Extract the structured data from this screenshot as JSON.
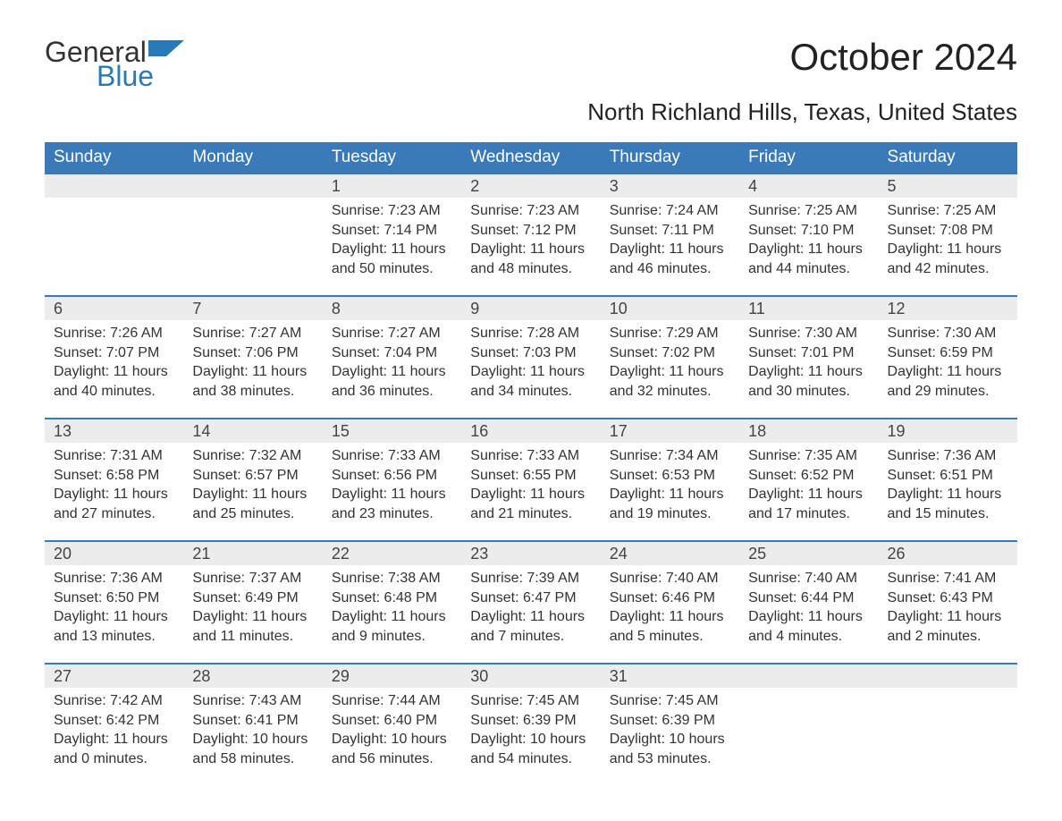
{
  "logo": {
    "word1": "General",
    "word2": "Blue"
  },
  "title": "October 2024",
  "subtitle": "North Richland Hills, Texas, United States",
  "colors": {
    "header_bg": "#3a7ab8",
    "header_text": "#ffffff",
    "daynum_bg": "#ececec",
    "border_top": "#3a7ab8",
    "body_text": "#333333",
    "logo_blue": "#2a7ab8",
    "page_bg": "#ffffff"
  },
  "typography": {
    "title_fontsize": 42,
    "subtitle_fontsize": 26,
    "dayheader_fontsize": 19,
    "daynum_fontsize": 18,
    "cell_fontsize": 16,
    "logo_fontsize": 32
  },
  "day_headers": [
    "Sunday",
    "Monday",
    "Tuesday",
    "Wednesday",
    "Thursday",
    "Friday",
    "Saturday"
  ],
  "weeks": [
    [
      null,
      null,
      {
        "n": "1",
        "sunrise": "Sunrise: 7:23 AM",
        "sunset": "Sunset: 7:14 PM",
        "d1": "Daylight: 11 hours",
        "d2": "and 50 minutes."
      },
      {
        "n": "2",
        "sunrise": "Sunrise: 7:23 AM",
        "sunset": "Sunset: 7:12 PM",
        "d1": "Daylight: 11 hours",
        "d2": "and 48 minutes."
      },
      {
        "n": "3",
        "sunrise": "Sunrise: 7:24 AM",
        "sunset": "Sunset: 7:11 PM",
        "d1": "Daylight: 11 hours",
        "d2": "and 46 minutes."
      },
      {
        "n": "4",
        "sunrise": "Sunrise: 7:25 AM",
        "sunset": "Sunset: 7:10 PM",
        "d1": "Daylight: 11 hours",
        "d2": "and 44 minutes."
      },
      {
        "n": "5",
        "sunrise": "Sunrise: 7:25 AM",
        "sunset": "Sunset: 7:08 PM",
        "d1": "Daylight: 11 hours",
        "d2": "and 42 minutes."
      }
    ],
    [
      {
        "n": "6",
        "sunrise": "Sunrise: 7:26 AM",
        "sunset": "Sunset: 7:07 PM",
        "d1": "Daylight: 11 hours",
        "d2": "and 40 minutes."
      },
      {
        "n": "7",
        "sunrise": "Sunrise: 7:27 AM",
        "sunset": "Sunset: 7:06 PM",
        "d1": "Daylight: 11 hours",
        "d2": "and 38 minutes."
      },
      {
        "n": "8",
        "sunrise": "Sunrise: 7:27 AM",
        "sunset": "Sunset: 7:04 PM",
        "d1": "Daylight: 11 hours",
        "d2": "and 36 minutes."
      },
      {
        "n": "9",
        "sunrise": "Sunrise: 7:28 AM",
        "sunset": "Sunset: 7:03 PM",
        "d1": "Daylight: 11 hours",
        "d2": "and 34 minutes."
      },
      {
        "n": "10",
        "sunrise": "Sunrise: 7:29 AM",
        "sunset": "Sunset: 7:02 PM",
        "d1": "Daylight: 11 hours",
        "d2": "and 32 minutes."
      },
      {
        "n": "11",
        "sunrise": "Sunrise: 7:30 AM",
        "sunset": "Sunset: 7:01 PM",
        "d1": "Daylight: 11 hours",
        "d2": "and 30 minutes."
      },
      {
        "n": "12",
        "sunrise": "Sunrise: 7:30 AM",
        "sunset": "Sunset: 6:59 PM",
        "d1": "Daylight: 11 hours",
        "d2": "and 29 minutes."
      }
    ],
    [
      {
        "n": "13",
        "sunrise": "Sunrise: 7:31 AM",
        "sunset": "Sunset: 6:58 PM",
        "d1": "Daylight: 11 hours",
        "d2": "and 27 minutes."
      },
      {
        "n": "14",
        "sunrise": "Sunrise: 7:32 AM",
        "sunset": "Sunset: 6:57 PM",
        "d1": "Daylight: 11 hours",
        "d2": "and 25 minutes."
      },
      {
        "n": "15",
        "sunrise": "Sunrise: 7:33 AM",
        "sunset": "Sunset: 6:56 PM",
        "d1": "Daylight: 11 hours",
        "d2": "and 23 minutes."
      },
      {
        "n": "16",
        "sunrise": "Sunrise: 7:33 AM",
        "sunset": "Sunset: 6:55 PM",
        "d1": "Daylight: 11 hours",
        "d2": "and 21 minutes."
      },
      {
        "n": "17",
        "sunrise": "Sunrise: 7:34 AM",
        "sunset": "Sunset: 6:53 PM",
        "d1": "Daylight: 11 hours",
        "d2": "and 19 minutes."
      },
      {
        "n": "18",
        "sunrise": "Sunrise: 7:35 AM",
        "sunset": "Sunset: 6:52 PM",
        "d1": "Daylight: 11 hours",
        "d2": "and 17 minutes."
      },
      {
        "n": "19",
        "sunrise": "Sunrise: 7:36 AM",
        "sunset": "Sunset: 6:51 PM",
        "d1": "Daylight: 11 hours",
        "d2": "and 15 minutes."
      }
    ],
    [
      {
        "n": "20",
        "sunrise": "Sunrise: 7:36 AM",
        "sunset": "Sunset: 6:50 PM",
        "d1": "Daylight: 11 hours",
        "d2": "and 13 minutes."
      },
      {
        "n": "21",
        "sunrise": "Sunrise: 7:37 AM",
        "sunset": "Sunset: 6:49 PM",
        "d1": "Daylight: 11 hours",
        "d2": "and 11 minutes."
      },
      {
        "n": "22",
        "sunrise": "Sunrise: 7:38 AM",
        "sunset": "Sunset: 6:48 PM",
        "d1": "Daylight: 11 hours",
        "d2": "and 9 minutes."
      },
      {
        "n": "23",
        "sunrise": "Sunrise: 7:39 AM",
        "sunset": "Sunset: 6:47 PM",
        "d1": "Daylight: 11 hours",
        "d2": "and 7 minutes."
      },
      {
        "n": "24",
        "sunrise": "Sunrise: 7:40 AM",
        "sunset": "Sunset: 6:46 PM",
        "d1": "Daylight: 11 hours",
        "d2": "and 5 minutes."
      },
      {
        "n": "25",
        "sunrise": "Sunrise: 7:40 AM",
        "sunset": "Sunset: 6:44 PM",
        "d1": "Daylight: 11 hours",
        "d2": "and 4 minutes."
      },
      {
        "n": "26",
        "sunrise": "Sunrise: 7:41 AM",
        "sunset": "Sunset: 6:43 PM",
        "d1": "Daylight: 11 hours",
        "d2": "and 2 minutes."
      }
    ],
    [
      {
        "n": "27",
        "sunrise": "Sunrise: 7:42 AM",
        "sunset": "Sunset: 6:42 PM",
        "d1": "Daylight: 11 hours",
        "d2": "and 0 minutes."
      },
      {
        "n": "28",
        "sunrise": "Sunrise: 7:43 AM",
        "sunset": "Sunset: 6:41 PM",
        "d1": "Daylight: 10 hours",
        "d2": "and 58 minutes."
      },
      {
        "n": "29",
        "sunrise": "Sunrise: 7:44 AM",
        "sunset": "Sunset: 6:40 PM",
        "d1": "Daylight: 10 hours",
        "d2": "and 56 minutes."
      },
      {
        "n": "30",
        "sunrise": "Sunrise: 7:45 AM",
        "sunset": "Sunset: 6:39 PM",
        "d1": "Daylight: 10 hours",
        "d2": "and 54 minutes."
      },
      {
        "n": "31",
        "sunrise": "Sunrise: 7:45 AM",
        "sunset": "Sunset: 6:39 PM",
        "d1": "Daylight: 10 hours",
        "d2": "and 53 minutes."
      },
      null,
      null
    ]
  ]
}
